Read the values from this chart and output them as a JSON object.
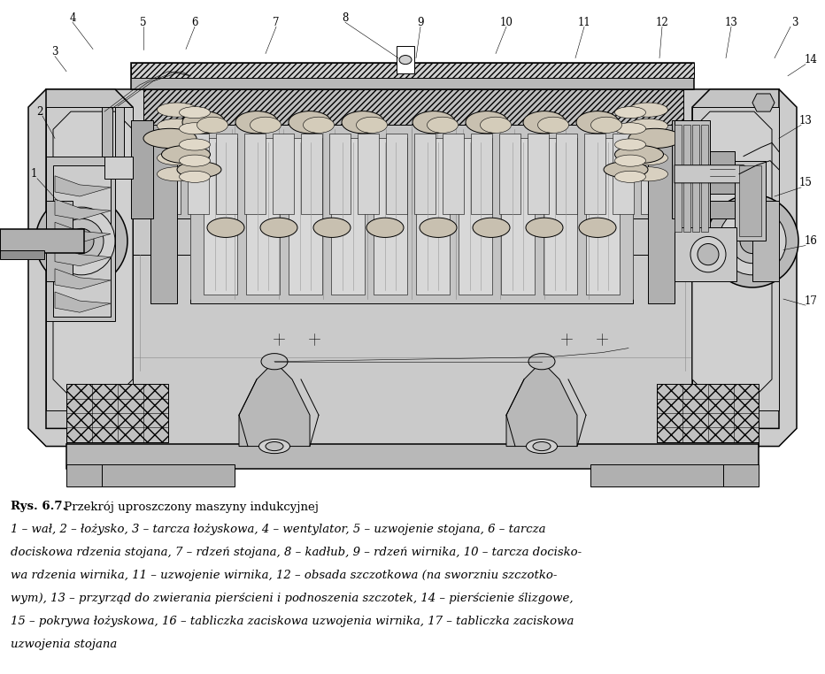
{
  "fig_width": 9.32,
  "fig_height": 7.62,
  "dpi": 100,
  "background_color": "#ffffff",
  "caption_bold": "Rys. 6.7.",
  "caption_title": " Przekrój uproszczony maszyny indukcyjnej",
  "caption_line1": "1 – wał, 2 – łożysko, 3 – tarcza łożyskowa, 4 – wentylator, 5 – uzwojenie stojana, 6 – tarcza",
  "caption_line2": "dociskowa rdzenia stojana, 7 – rdzeń stojana, 8 – kadłub, 9 – rdzeń wirnika, 10 – tarcza docisko-",
  "caption_line3": "wa rdzenia wirnika, 11 – uzwojenie wirnika, 12 – obsada szczotkowa (na sworzniu szczotko-",
  "caption_line4": "wym), 13 – przyrząd do zwierania pierścieni i podnoszenia szczotek, 14 – pierścienie ślizgowe,",
  "caption_line5": "15 – pokrywa łożyskowa, 16 – tabliczka zaciskowa uzwojenia wirnika, 17 – tabliczka zaciskowa",
  "caption_line6": "uzwojenia stojana",
  "gray_body": "#c8c8c8",
  "gray_dark": "#a8a8a8",
  "gray_light": "#e0e0e0",
  "gray_mid": "#b8b8b8",
  "white": "#ffffff",
  "black": "#1a1a1a"
}
